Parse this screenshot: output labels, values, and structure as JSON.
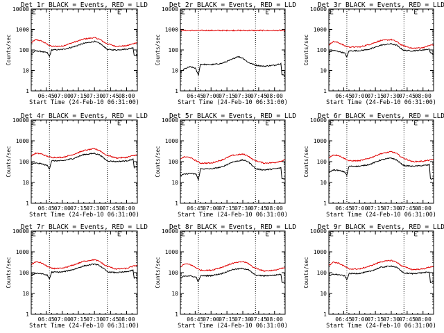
{
  "colors": {
    "events": "#000000",
    "lld": "#e00000",
    "axis": "#000000",
    "background": "#ffffff"
  },
  "shared": {
    "xlabel": "Start Time (24-Feb-10 06:31:00)",
    "ylabel": "Counts/sec",
    "x_ticks": [
      "06:45",
      "07:00",
      "07:15",
      "07:30",
      "07:45",
      "08:00"
    ],
    "x_tick_minutes": [
      45,
      60,
      75,
      90,
      105,
      120
    ],
    "y_ticks": [
      "1",
      "10",
      "100",
      "1000",
      "10000"
    ],
    "y_tick_values": [
      1,
      10,
      100,
      1000,
      10000
    ],
    "dotted_lines_minutes": [
      48,
      102
    ]
  },
  "chart_data": [
    {
      "type": "line",
      "title": "Det 1r BLACK = Events, RED = LLD",
      "xlim": [
        31,
        130
      ],
      "ylim": [
        1,
        10000
      ],
      "yscale": "log",
      "series": [
        {
          "name": "Events",
          "color": "#000000",
          "x": [
            31,
            35,
            40,
            46,
            48,
            50,
            60,
            70,
            80,
            90,
            95,
            100,
            102,
            110,
            120,
            126,
            127,
            130
          ],
          "values": [
            65,
            90,
            85,
            72,
            48,
            100,
            105,
            140,
            210,
            260,
            210,
            130,
            105,
            100,
            110,
            130,
            55,
            55
          ]
        },
        {
          "name": "LLD",
          "color": "#e00000",
          "x": [
            31,
            35,
            40,
            46,
            50,
            60,
            70,
            80,
            90,
            95,
            100,
            110,
            120,
            127,
            130
          ],
          "values": [
            220,
            320,
            280,
            190,
            150,
            155,
            230,
            340,
            400,
            330,
            220,
            150,
            160,
            210,
            230
          ]
        }
      ]
    },
    {
      "type": "line",
      "title": "Det 2r BLACK = Events, RED = LLD",
      "xlim": [
        31,
        130
      ],
      "ylim": [
        1,
        10000
      ],
      "yscale": "log",
      "series": [
        {
          "name": "Events",
          "color": "#000000",
          "x": [
            31,
            35,
            40,
            45,
            48,
            50,
            60,
            70,
            80,
            85,
            90,
            95,
            102,
            110,
            120,
            126,
            127,
            130
          ],
          "values": [
            8,
            12,
            15,
            13,
            6,
            20,
            19,
            22,
            35,
            48,
            40,
            25,
            18,
            16,
            18,
            22,
            6,
            6
          ]
        },
        {
          "name": "LLD",
          "color": "#e00000",
          "x": [
            31,
            130
          ],
          "values": [
            900,
            900
          ]
        }
      ]
    },
    {
      "type": "line",
      "title": "Det 3r BLACK = Events, RED = LLD",
      "xlim": [
        31,
        130
      ],
      "ylim": [
        1,
        10000
      ],
      "yscale": "log",
      "series": [
        {
          "name": "Events",
          "color": "#000000",
          "x": [
            31,
            35,
            40,
            46,
            48,
            50,
            60,
            70,
            80,
            90,
            95,
            100,
            102,
            110,
            120,
            126,
            127,
            130
          ],
          "values": [
            75,
            95,
            85,
            70,
            45,
            90,
            92,
            110,
            170,
            200,
            170,
            110,
            95,
            90,
            100,
            110,
            70,
            70
          ]
        },
        {
          "name": "LLD",
          "color": "#e00000",
          "x": [
            31,
            35,
            40,
            46,
            50,
            60,
            70,
            80,
            90,
            95,
            100,
            110,
            120,
            127,
            130
          ],
          "values": [
            170,
            260,
            230,
            160,
            140,
            140,
            190,
            290,
            320,
            260,
            170,
            120,
            130,
            170,
            180
          ]
        }
      ]
    },
    {
      "type": "line",
      "title": "Det 4r BLACK = Events, RED = LLD",
      "xlim": [
        31,
        130
      ],
      "ylim": [
        1,
        10000
      ],
      "yscale": "log",
      "series": [
        {
          "name": "Events",
          "color": "#000000",
          "x": [
            31,
            35,
            40,
            46,
            48,
            50,
            60,
            70,
            80,
            90,
            95,
            100,
            102,
            110,
            120,
            126,
            127,
            130
          ],
          "values": [
            75,
            85,
            80,
            65,
            45,
            110,
            110,
            140,
            220,
            250,
            210,
            130,
            110,
            100,
            110,
            130,
            55,
            55
          ]
        },
        {
          "name": "LLD",
          "color": "#e00000",
          "x": [
            31,
            35,
            40,
            46,
            50,
            60,
            70,
            80,
            90,
            95,
            100,
            110,
            120,
            127,
            130
          ],
          "values": [
            190,
            250,
            240,
            180,
            160,
            160,
            220,
            340,
            420,
            340,
            220,
            150,
            160,
            200,
            210
          ]
        }
      ]
    },
    {
      "type": "line",
      "title": "Det 5r BLACK = Events, RED = LLD",
      "xlim": [
        31,
        130
      ],
      "ylim": [
        1,
        10000
      ],
      "yscale": "log",
      "series": [
        {
          "name": "Events",
          "color": "#000000",
          "x": [
            31,
            35,
            40,
            46,
            48,
            50,
            60,
            70,
            80,
            90,
            95,
            100,
            102,
            110,
            120,
            126,
            127,
            130
          ],
          "values": [
            22,
            25,
            27,
            25,
            13,
            45,
            45,
            55,
            95,
            120,
            100,
            60,
            45,
            40,
            45,
            50,
            15,
            15
          ]
        },
        {
          "name": "LLD",
          "color": "#e00000",
          "x": [
            31,
            35,
            40,
            46,
            50,
            60,
            70,
            80,
            90,
            95,
            100,
            110,
            120,
            127,
            130
          ],
          "values": [
            140,
            170,
            160,
            110,
            85,
            85,
            120,
            200,
            230,
            190,
            120,
            85,
            90,
            110,
            120
          ]
        }
      ]
    },
    {
      "type": "line",
      "title": "Det 6r BLACK = Events, RED = LLD",
      "xlim": [
        31,
        130
      ],
      "ylim": [
        1,
        10000
      ],
      "yscale": "log",
      "series": [
        {
          "name": "Events",
          "color": "#000000",
          "x": [
            31,
            35,
            40,
            46,
            48,
            50,
            60,
            70,
            80,
            90,
            95,
            100,
            102,
            110,
            120,
            126,
            127,
            130
          ],
          "values": [
            30,
            40,
            38,
            32,
            22,
            60,
            60,
            75,
            120,
            150,
            120,
            75,
            65,
            60,
            65,
            70,
            15,
            15
          ]
        },
        {
          "name": "LLD",
          "color": "#e00000",
          "x": [
            31,
            35,
            40,
            46,
            50,
            60,
            70,
            80,
            90,
            95,
            100,
            110,
            120,
            127,
            130
          ],
          "values": [
            150,
            210,
            200,
            140,
            110,
            110,
            150,
            240,
            300,
            250,
            160,
            100,
            105,
            120,
            130
          ]
        }
      ]
    },
    {
      "type": "line",
      "title": "Det 7r BLACK = Events, RED = LLD",
      "xlim": [
        31,
        130
      ],
      "ylim": [
        1,
        10000
      ],
      "yscale": "log",
      "series": [
        {
          "name": "Events",
          "color": "#000000",
          "x": [
            31,
            35,
            40,
            46,
            48,
            50,
            60,
            70,
            80,
            90,
            95,
            100,
            102,
            110,
            120,
            126,
            127,
            130
          ],
          "values": [
            70,
            95,
            90,
            75,
            50,
            105,
            108,
            140,
            210,
            260,
            215,
            135,
            110,
            100,
            110,
            130,
            55,
            55
          ]
        },
        {
          "name": "LLD",
          "color": "#e00000",
          "x": [
            31,
            35,
            40,
            46,
            50,
            60,
            70,
            80,
            90,
            95,
            100,
            110,
            120,
            127,
            130
          ],
          "values": [
            240,
            330,
            300,
            200,
            160,
            160,
            230,
            350,
            420,
            340,
            220,
            150,
            160,
            210,
            230
          ]
        }
      ]
    },
    {
      "type": "line",
      "title": "Det 8r BLACK = Events, RED = LLD",
      "xlim": [
        31,
        130
      ],
      "ylim": [
        1,
        10000
      ],
      "yscale": "log",
      "series": [
        {
          "name": "Events",
          "color": "#000000",
          "x": [
            31,
            35,
            40,
            46,
            48,
            50,
            60,
            70,
            80,
            90,
            95,
            100,
            102,
            110,
            120,
            126,
            127,
            130
          ],
          "values": [
            55,
            70,
            70,
            60,
            35,
            70,
            72,
            90,
            140,
            160,
            140,
            90,
            75,
            70,
            75,
            85,
            35,
            35
          ]
        },
        {
          "name": "LLD",
          "color": "#e00000",
          "x": [
            31,
            35,
            40,
            46,
            50,
            60,
            70,
            80,
            90,
            95,
            100,
            110,
            120,
            127,
            130
          ],
          "values": [
            190,
            260,
            250,
            170,
            130,
            130,
            180,
            280,
            340,
            280,
            180,
            120,
            130,
            160,
            170
          ]
        }
      ]
    },
    {
      "type": "line",
      "title": "Det 9r BLACK = Events, RED = LLD",
      "xlim": [
        31,
        130
      ],
      "ylim": [
        1,
        10000
      ],
      "yscale": "log",
      "series": [
        {
          "name": "Events",
          "color": "#000000",
          "x": [
            31,
            35,
            40,
            46,
            48,
            50,
            60,
            70,
            80,
            90,
            95,
            100,
            102,
            110,
            120,
            126,
            127,
            130
          ],
          "values": [
            65,
            85,
            80,
            70,
            45,
            90,
            92,
            115,
            180,
            210,
            180,
            115,
            95,
            90,
            100,
            105,
            35,
            35
          ]
        },
        {
          "name": "LLD",
          "color": "#e00000",
          "x": [
            31,
            35,
            40,
            46,
            50,
            60,
            70,
            80,
            90,
            95,
            100,
            110,
            120,
            127,
            130
          ],
          "values": [
            220,
            320,
            290,
            200,
            150,
            150,
            210,
            330,
            390,
            320,
            210,
            140,
            150,
            190,
            200
          ]
        }
      ]
    }
  ]
}
